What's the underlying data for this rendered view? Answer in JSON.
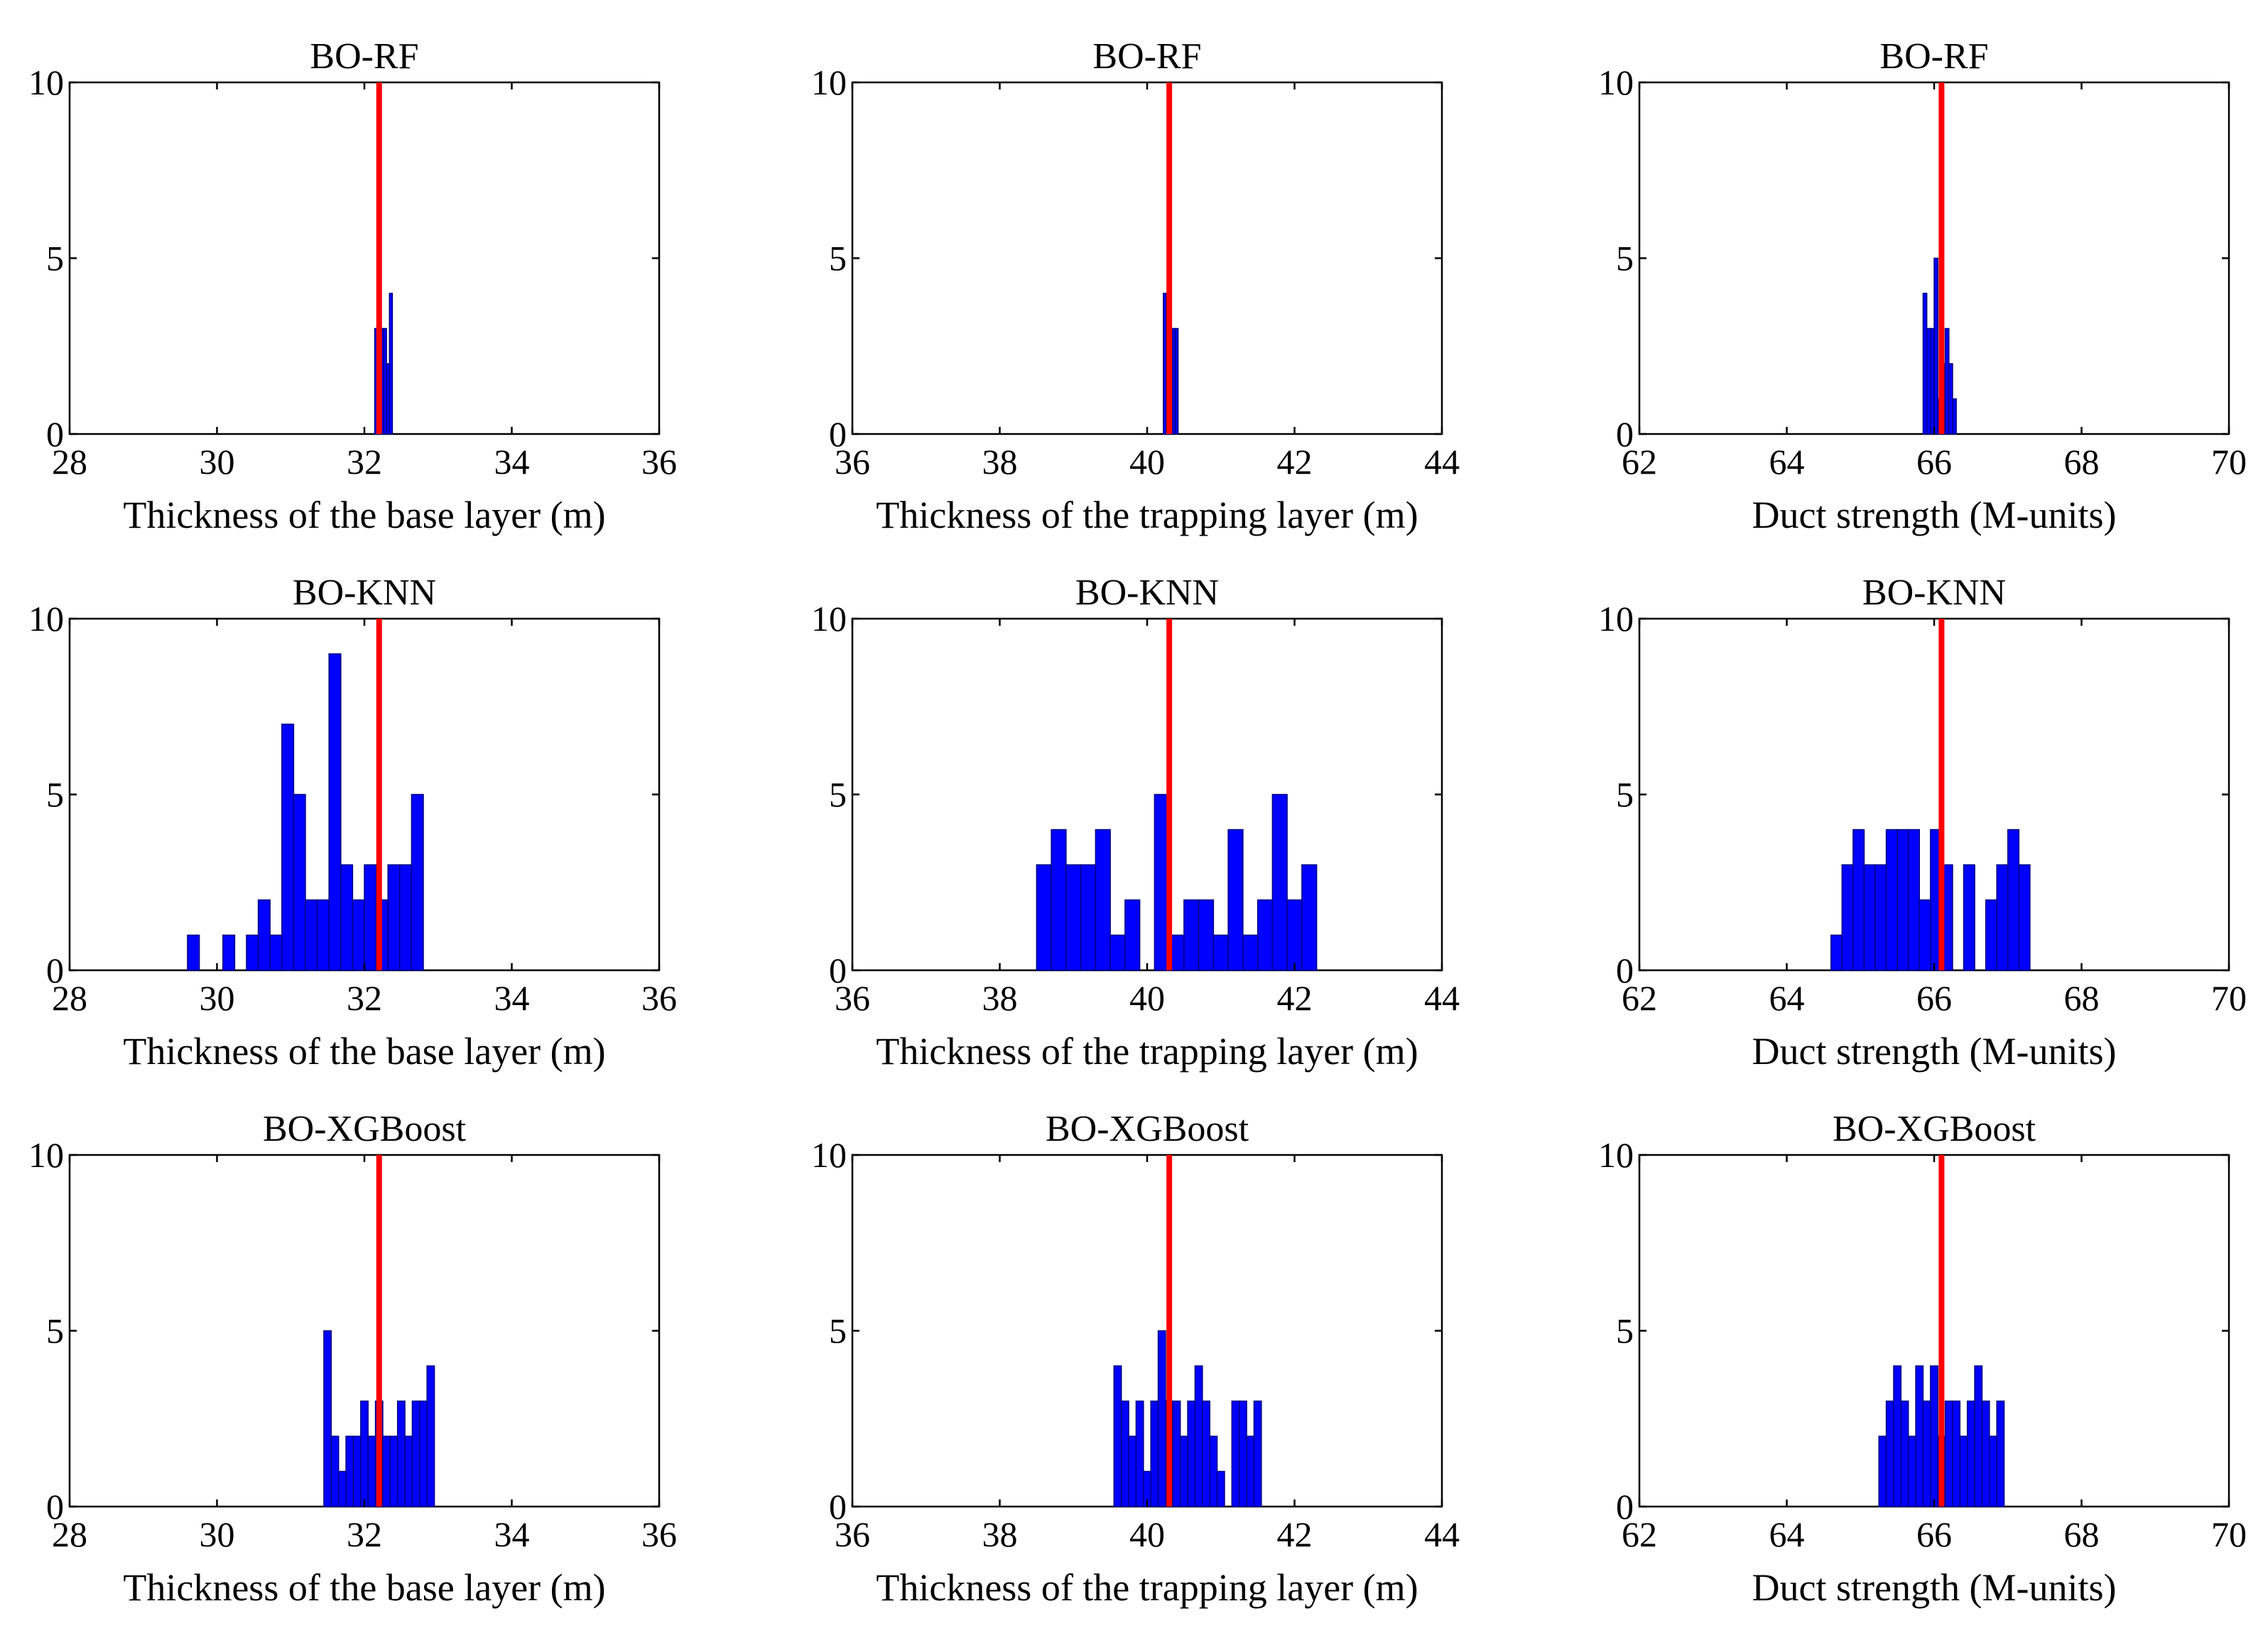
{
  "chart_data": [
    {
      "type": "bar",
      "title": "BO-RF",
      "xlabel": "Thickness of the base layer (m)",
      "ylabel": "",
      "xlim": [
        28,
        36
      ],
      "ylim": [
        0,
        10
      ],
      "xticks": [
        "28",
        "30",
        "32",
        "34",
        "36"
      ],
      "yticks": [
        "0",
        "5",
        "10"
      ],
      "reference_line": 32.2,
      "bin_width": 0.04,
      "bins": [
        [
          32.14,
          3
        ],
        [
          32.18,
          3
        ],
        [
          32.22,
          3
        ],
        [
          32.26,
          3
        ],
        [
          32.3,
          2
        ],
        [
          32.34,
          4
        ]
      ]
    },
    {
      "type": "bar",
      "title": "BO-RF",
      "xlabel": "Thickness of the trapping layer (m)",
      "ylabel": "",
      "xlim": [
        36,
        44
      ],
      "ylim": [
        0,
        10
      ],
      "xticks": [
        "36",
        "38",
        "40",
        "42",
        "44"
      ],
      "yticks": [
        "0",
        "5",
        "10"
      ],
      "reference_line": 40.3,
      "bin_width": 0.04,
      "bins": [
        [
          40.22,
          4
        ],
        [
          40.26,
          1
        ],
        [
          40.3,
          2
        ],
        [
          40.34,
          3
        ],
        [
          40.38,
          3
        ]
      ]
    },
    {
      "type": "bar",
      "title": "BO-RF",
      "xlabel": "Duct strength (M-units)",
      "ylabel": "",
      "xlim": [
        62,
        70
      ],
      "ylim": [
        0,
        10
      ],
      "xticks": [
        "62",
        "64",
        "66",
        "68",
        "70"
      ],
      "yticks": [
        "0",
        "5",
        "10"
      ],
      "reference_line": 66.1,
      "bin_width": 0.05,
      "bins": [
        [
          65.85,
          4
        ],
        [
          65.9,
          3
        ],
        [
          65.95,
          3
        ],
        [
          66.0,
          5
        ],
        [
          66.05,
          1
        ],
        [
          66.1,
          2
        ],
        [
          66.15,
          3
        ],
        [
          66.2,
          2
        ],
        [
          66.25,
          1
        ]
      ]
    },
    {
      "type": "bar",
      "title": "BO-KNN",
      "xlabel": "Thickness of the base layer (m)",
      "ylabel": "",
      "xlim": [
        28,
        36
      ],
      "ylim": [
        0,
        10
      ],
      "xticks": [
        "28",
        "30",
        "32",
        "34",
        "36"
      ],
      "yticks": [
        "0",
        "5",
        "10"
      ],
      "reference_line": 32.2,
      "bin_width": 0.16,
      "bins": [
        [
          29.6,
          1
        ],
        [
          30.08,
          1
        ],
        [
          30.4,
          1
        ],
        [
          30.56,
          2
        ],
        [
          30.72,
          1
        ],
        [
          30.88,
          7
        ],
        [
          31.04,
          5
        ],
        [
          31.2,
          2
        ],
        [
          31.36,
          2
        ],
        [
          31.52,
          9
        ],
        [
          31.68,
          3
        ],
        [
          31.84,
          2
        ],
        [
          32.0,
          3
        ],
        [
          32.16,
          2
        ],
        [
          32.32,
          3
        ],
        [
          32.48,
          3
        ],
        [
          32.64,
          5
        ]
      ]
    },
    {
      "type": "bar",
      "title": "BO-KNN",
      "xlabel": "Thickness of the trapping layer (m)",
      "ylabel": "",
      "xlim": [
        36,
        44
      ],
      "ylim": [
        0,
        10
      ],
      "xticks": [
        "36",
        "38",
        "40",
        "42",
        "44"
      ],
      "yticks": [
        "0",
        "5",
        "10"
      ],
      "reference_line": 40.3,
      "bin_width": 0.2,
      "bins": [
        [
          38.5,
          3
        ],
        [
          38.7,
          4
        ],
        [
          38.9,
          3
        ],
        [
          39.1,
          3
        ],
        [
          39.3,
          4
        ],
        [
          39.5,
          1
        ],
        [
          39.7,
          2
        ],
        [
          40.1,
          5
        ],
        [
          40.3,
          1
        ],
        [
          40.5,
          2
        ],
        [
          40.7,
          2
        ],
        [
          40.9,
          1
        ],
        [
          41.1,
          4
        ],
        [
          41.3,
          1
        ],
        [
          41.5,
          2
        ],
        [
          41.7,
          5
        ],
        [
          41.9,
          2
        ],
        [
          42.1,
          3
        ]
      ]
    },
    {
      "type": "bar",
      "title": "BO-KNN",
      "xlabel": "Duct strength (M-units)",
      "ylabel": "",
      "xlim": [
        62,
        70
      ],
      "ylim": [
        0,
        10
      ],
      "xticks": [
        "62",
        "64",
        "66",
        "68",
        "70"
      ],
      "yticks": [
        "0",
        "5",
        "10"
      ],
      "reference_line": 66.1,
      "bin_width": 0.15,
      "bins": [
        [
          64.6,
          1
        ],
        [
          64.75,
          3
        ],
        [
          64.9,
          4
        ],
        [
          65.05,
          3
        ],
        [
          65.2,
          3
        ],
        [
          65.35,
          4
        ],
        [
          65.5,
          4
        ],
        [
          65.65,
          4
        ],
        [
          65.8,
          2
        ],
        [
          65.95,
          4
        ],
        [
          66.1,
          3
        ],
        [
          66.4,
          3
        ],
        [
          66.7,
          2
        ],
        [
          66.85,
          3
        ],
        [
          67.0,
          4
        ],
        [
          67.15,
          3
        ]
      ]
    },
    {
      "type": "bar",
      "title": "BO-XGBoost",
      "xlabel": "Thickness of the base layer (m)",
      "ylabel": "",
      "xlim": [
        28,
        36
      ],
      "ylim": [
        0,
        10
      ],
      "xticks": [
        "28",
        "30",
        "32",
        "34",
        "36"
      ],
      "yticks": [
        "0",
        "5",
        "10"
      ],
      "reference_line": 32.2,
      "bin_width": 0.1,
      "bins": [
        [
          31.45,
          5
        ],
        [
          31.55,
          2
        ],
        [
          31.65,
          1
        ],
        [
          31.75,
          2
        ],
        [
          31.85,
          2
        ],
        [
          31.95,
          3
        ],
        [
          32.05,
          2
        ],
        [
          32.15,
          3
        ],
        [
          32.25,
          2
        ],
        [
          32.35,
          2
        ],
        [
          32.45,
          3
        ],
        [
          32.55,
          2
        ],
        [
          32.65,
          3
        ],
        [
          32.75,
          3
        ],
        [
          32.85,
          4
        ]
      ]
    },
    {
      "type": "bar",
      "title": "BO-XGBoost",
      "xlabel": "Thickness of the trapping layer (m)",
      "ylabel": "",
      "xlim": [
        36,
        44
      ],
      "ylim": [
        0,
        10
      ],
      "xticks": [
        "36",
        "38",
        "40",
        "42",
        "44"
      ],
      "yticks": [
        "0",
        "5",
        "10"
      ],
      "reference_line": 40.3,
      "bin_width": 0.1,
      "bins": [
        [
          39.55,
          4
        ],
        [
          39.65,
          3
        ],
        [
          39.75,
          2
        ],
        [
          39.85,
          3
        ],
        [
          39.95,
          1
        ],
        [
          40.05,
          3
        ],
        [
          40.15,
          5
        ],
        [
          40.25,
          3
        ],
        [
          40.35,
          3
        ],
        [
          40.45,
          2
        ],
        [
          40.55,
          3
        ],
        [
          40.65,
          4
        ],
        [
          40.75,
          3
        ],
        [
          40.85,
          2
        ],
        [
          40.95,
          1
        ],
        [
          41.15,
          3
        ],
        [
          41.25,
          3
        ],
        [
          41.35,
          2
        ],
        [
          41.45,
          3
        ]
      ]
    },
    {
      "type": "bar",
      "title": "BO-XGBoost",
      "xlabel": "Duct strength (M-units)",
      "ylabel": "",
      "xlim": [
        62,
        70
      ],
      "ylim": [
        0,
        10
      ],
      "xticks": [
        "62",
        "64",
        "66",
        "68",
        "70"
      ],
      "yticks": [
        "0",
        "5",
        "10"
      ],
      "reference_line": 66.1,
      "bin_width": 0.1,
      "bins": [
        [
          65.25,
          2
        ],
        [
          65.35,
          3
        ],
        [
          65.45,
          4
        ],
        [
          65.55,
          3
        ],
        [
          65.65,
          2
        ],
        [
          65.75,
          4
        ],
        [
          65.85,
          3
        ],
        [
          65.95,
          4
        ],
        [
          66.05,
          2
        ],
        [
          66.15,
          3
        ],
        [
          66.25,
          3
        ],
        [
          66.35,
          2
        ],
        [
          66.45,
          3
        ],
        [
          66.55,
          4
        ],
        [
          66.65,
          3
        ],
        [
          66.75,
          2
        ],
        [
          66.85,
          3
        ]
      ]
    }
  ]
}
